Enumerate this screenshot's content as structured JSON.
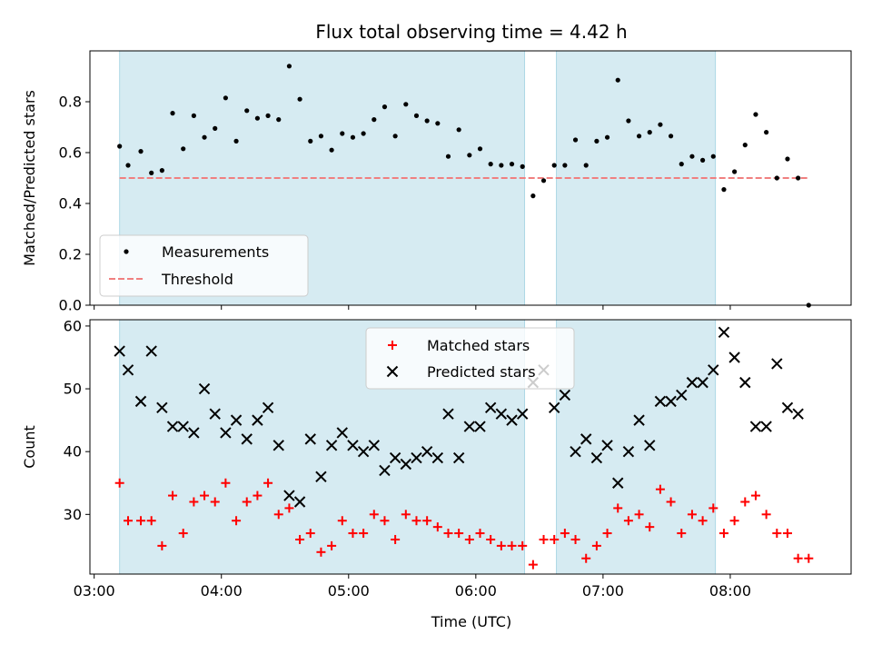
{
  "title": "Flux total observing time = 4.42 h",
  "xlabel": "Time (UTC)",
  "colors": {
    "shade": "#add8e6",
    "measurement": "#000000",
    "threshold": "#f08080",
    "matched": "#ff0000",
    "predicted": "#000000"
  },
  "chart_data": [
    {
      "type": "scatter",
      "panel": "top",
      "ylabel": "Matched/Predicted stars",
      "ylim": [
        0,
        1.0
      ],
      "yticks": [
        "0.0",
        "0.2",
        "0.4",
        "0.6",
        "0.8"
      ],
      "xlim": [
        "02:58",
        "08:57"
      ],
      "xticks": [
        "03:00",
        "04:00",
        "05:00",
        "06:00",
        "07:00",
        "08:00"
      ],
      "xtick_labels_visible": false,
      "shaded_intervals": [
        [
          "03:12",
          "06:23"
        ],
        [
          "06:38",
          "07:53"
        ]
      ],
      "threshold": {
        "name": "Threshold",
        "value": 0.5,
        "x_range": [
          "03:12",
          "08:37"
        ],
        "style": "dashed"
      },
      "legend": {
        "placement": "lower-left",
        "entries": [
          "Measurements",
          "Threshold"
        ]
      },
      "series": [
        {
          "name": "Measurements",
          "marker": "dot",
          "points": [
            [
              "03:12",
              0.625
            ],
            [
              "03:16",
              0.55
            ],
            [
              "03:22",
              0.605
            ],
            [
              "03:27",
              0.52
            ],
            [
              "03:32",
              0.53
            ],
            [
              "03:37",
              0.755
            ],
            [
              "03:42",
              0.615
            ],
            [
              "03:47",
              0.745
            ],
            [
              "03:52",
              0.66
            ],
            [
              "03:57",
              0.695
            ],
            [
              "04:02",
              0.815
            ],
            [
              "04:07",
              0.645
            ],
            [
              "04:12",
              0.765
            ],
            [
              "04:17",
              0.735
            ],
            [
              "04:22",
              0.745
            ],
            [
              "04:27",
              0.73
            ],
            [
              "04:32",
              0.94
            ],
            [
              "04:37",
              0.81
            ],
            [
              "04:42",
              0.645
            ],
            [
              "04:47",
              0.665
            ],
            [
              "04:52",
              0.61
            ],
            [
              "04:57",
              0.675
            ],
            [
              "05:02",
              0.66
            ],
            [
              "05:07",
              0.675
            ],
            [
              "05:12",
              0.73
            ],
            [
              "05:17",
              0.78
            ],
            [
              "05:22",
              0.665
            ],
            [
              "05:27",
              0.79
            ],
            [
              "05:32",
              0.745
            ],
            [
              "05:37",
              0.725
            ],
            [
              "05:42",
              0.715
            ],
            [
              "05:47",
              0.585
            ],
            [
              "05:52",
              0.69
            ],
            [
              "05:57",
              0.59
            ],
            [
              "06:02",
              0.615
            ],
            [
              "06:07",
              0.555
            ],
            [
              "06:12",
              0.55
            ],
            [
              "06:17",
              0.555
            ],
            [
              "06:22",
              0.545
            ],
            [
              "06:27",
              0.43
            ],
            [
              "06:32",
              0.49
            ],
            [
              "06:37",
              0.55
            ],
            [
              "06:42",
              0.55
            ],
            [
              "06:47",
              0.65
            ],
            [
              "06:52",
              0.55
            ],
            [
              "06:57",
              0.645
            ],
            [
              "07:02",
              0.66
            ],
            [
              "07:07",
              0.885
            ],
            [
              "07:12",
              0.725
            ],
            [
              "07:17",
              0.665
            ],
            [
              "07:22",
              0.68
            ],
            [
              "07:27",
              0.71
            ],
            [
              "07:32",
              0.665
            ],
            [
              "07:37",
              0.555
            ],
            [
              "07:42",
              0.585
            ],
            [
              "07:47",
              0.57
            ],
            [
              "07:52",
              0.585
            ],
            [
              "07:57",
              0.455
            ],
            [
              "08:02",
              0.525
            ],
            [
              "08:07",
              0.63
            ],
            [
              "08:12",
              0.75
            ],
            [
              "08:17",
              0.68
            ],
            [
              "08:22",
              0.5
            ],
            [
              "08:27",
              0.575
            ],
            [
              "08:32",
              0.5
            ],
            [
              "08:37",
              0.0
            ]
          ]
        }
      ]
    },
    {
      "type": "scatter",
      "panel": "bottom",
      "ylabel": "Count",
      "ylim": [
        20.5,
        61
      ],
      "yticks": [
        "30",
        "40",
        "50",
        "60"
      ],
      "xlim": [
        "02:58",
        "08:57"
      ],
      "xticks": [
        "03:00",
        "04:00",
        "05:00",
        "06:00",
        "07:00",
        "08:00"
      ],
      "shaded_intervals": [
        [
          "03:12",
          "06:23"
        ],
        [
          "06:38",
          "07:53"
        ]
      ],
      "legend": {
        "placement": "upper-center",
        "entries": [
          "Matched stars",
          "Predicted stars"
        ]
      },
      "series": [
        {
          "name": "Matched stars",
          "marker": "plus",
          "points": [
            [
              "03:12",
              35
            ],
            [
              "03:16",
              29
            ],
            [
              "03:22",
              29
            ],
            [
              "03:27",
              29
            ],
            [
              "03:32",
              25
            ],
            [
              "03:37",
              33
            ],
            [
              "03:42",
              27
            ],
            [
              "03:47",
              32
            ],
            [
              "03:52",
              33
            ],
            [
              "03:57",
              32
            ],
            [
              "04:02",
              35
            ],
            [
              "04:07",
              29
            ],
            [
              "04:12",
              32
            ],
            [
              "04:17",
              33
            ],
            [
              "04:22",
              35
            ],
            [
              "04:27",
              30
            ],
            [
              "04:32",
              31
            ],
            [
              "04:37",
              26
            ],
            [
              "04:42",
              27
            ],
            [
              "04:47",
              24
            ],
            [
              "04:52",
              25
            ],
            [
              "04:57",
              29
            ],
            [
              "05:02",
              27
            ],
            [
              "05:07",
              27
            ],
            [
              "05:12",
              30
            ],
            [
              "05:17",
              29
            ],
            [
              "05:22",
              26
            ],
            [
              "05:27",
              30
            ],
            [
              "05:32",
              29
            ],
            [
              "05:37",
              29
            ],
            [
              "05:42",
              28
            ],
            [
              "05:47",
              27
            ],
            [
              "05:52",
              27
            ],
            [
              "05:57",
              26
            ],
            [
              "06:02",
              27
            ],
            [
              "06:07",
              26
            ],
            [
              "06:12",
              25
            ],
            [
              "06:17",
              25
            ],
            [
              "06:22",
              25
            ],
            [
              "06:27",
              22
            ],
            [
              "06:32",
              26
            ],
            [
              "06:37",
              26
            ],
            [
              "06:42",
              27
            ],
            [
              "06:47",
              26
            ],
            [
              "06:52",
              23
            ],
            [
              "06:57",
              25
            ],
            [
              "07:02",
              27
            ],
            [
              "07:07",
              31
            ],
            [
              "07:12",
              29
            ],
            [
              "07:17",
              30
            ],
            [
              "07:22",
              28
            ],
            [
              "07:27",
              34
            ],
            [
              "07:32",
              32
            ],
            [
              "07:37",
              27
            ],
            [
              "07:42",
              30
            ],
            [
              "07:47",
              29
            ],
            [
              "07:52",
              31
            ],
            [
              "07:57",
              27
            ],
            [
              "08:02",
              29
            ],
            [
              "08:07",
              32
            ],
            [
              "08:12",
              33
            ],
            [
              "08:17",
              30
            ],
            [
              "08:22",
              27
            ],
            [
              "08:27",
              27
            ],
            [
              "08:32",
              23
            ],
            [
              "08:37",
              23
            ]
          ]
        },
        {
          "name": "Predicted stars",
          "marker": "x",
          "points": [
            [
              "03:12",
              56
            ],
            [
              "03:16",
              53
            ],
            [
              "03:22",
              48
            ],
            [
              "03:27",
              56
            ],
            [
              "03:32",
              47
            ],
            [
              "03:37",
              44
            ],
            [
              "03:42",
              44
            ],
            [
              "03:47",
              43
            ],
            [
              "03:52",
              50
            ],
            [
              "03:57",
              46
            ],
            [
              "04:02",
              43
            ],
            [
              "04:07",
              45
            ],
            [
              "04:12",
              42
            ],
            [
              "04:17",
              45
            ],
            [
              "04:22",
              47
            ],
            [
              "04:27",
              41
            ],
            [
              "04:32",
              33
            ],
            [
              "04:37",
              32
            ],
            [
              "04:42",
              42
            ],
            [
              "04:47",
              36
            ],
            [
              "04:52",
              41
            ],
            [
              "04:57",
              43
            ],
            [
              "05:02",
              41
            ],
            [
              "05:07",
              40
            ],
            [
              "05:12",
              41
            ],
            [
              "05:17",
              37
            ],
            [
              "05:22",
              39
            ],
            [
              "05:27",
              38
            ],
            [
              "05:32",
              39
            ],
            [
              "05:37",
              40
            ],
            [
              "05:42",
              39
            ],
            [
              "05:47",
              46
            ],
            [
              "05:52",
              39
            ],
            [
              "05:57",
              44
            ],
            [
              "06:02",
              44
            ],
            [
              "06:07",
              47
            ],
            [
              "06:12",
              46
            ],
            [
              "06:17",
              45
            ],
            [
              "06:22",
              46
            ],
            [
              "06:27",
              51
            ],
            [
              "06:32",
              53
            ],
            [
              "06:37",
              47
            ],
            [
              "06:42",
              49
            ],
            [
              "06:47",
              40
            ],
            [
              "06:52",
              42
            ],
            [
              "06:57",
              39
            ],
            [
              "07:02",
              41
            ],
            [
              "07:07",
              35
            ],
            [
              "07:12",
              40
            ],
            [
              "07:17",
              45
            ],
            [
              "07:22",
              41
            ],
            [
              "07:27",
              48
            ],
            [
              "07:32",
              48
            ],
            [
              "07:37",
              49
            ],
            [
              "07:42",
              51
            ],
            [
              "07:47",
              51
            ],
            [
              "07:52",
              53
            ],
            [
              "07:57",
              59
            ],
            [
              "08:02",
              55
            ],
            [
              "08:07",
              51
            ],
            [
              "08:12",
              44
            ],
            [
              "08:17",
              44
            ],
            [
              "08:22",
              54
            ],
            [
              "08:27",
              47
            ],
            [
              "08:32",
              46
            ]
          ]
        }
      ]
    }
  ]
}
